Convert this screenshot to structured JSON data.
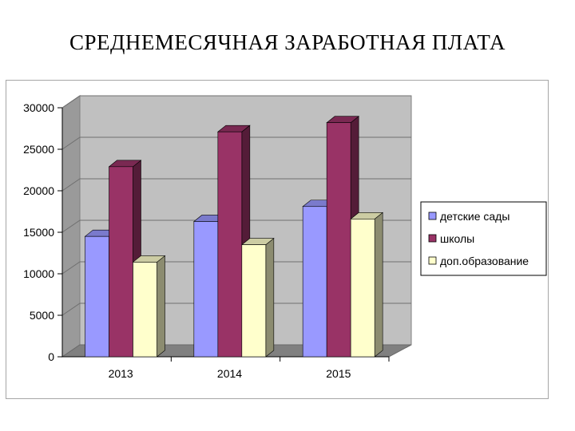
{
  "title": "СРЕДНЕМЕСЯЧНАЯ ЗАРАБОТНАЯ ПЛАТА",
  "chart_data": {
    "type": "bar",
    "title": "",
    "xlabel": "",
    "ylabel": "",
    "ylim": [
      0,
      30000
    ],
    "ytick_step": 5000,
    "yticks": [
      "0",
      "5000",
      "10000",
      "15000",
      "20000",
      "25000",
      "30000"
    ],
    "categories": [
      "2013",
      "2014",
      "2015"
    ],
    "series": [
      {
        "name": "детские сады",
        "values": [
          14500,
          16300,
          18100
        ],
        "color": "#9999ff"
      },
      {
        "name": "школы",
        "values": [
          22900,
          27100,
          28200
        ],
        "color": "#993366"
      },
      {
        "name": "доп.образование",
        "values": [
          11400,
          13500,
          16600
        ],
        "color": "#ffffcc"
      }
    ],
    "grid": true,
    "three_d": true,
    "legend_position": "right",
    "wall_color": "#c0c0c0",
    "floor_color": "#808080"
  }
}
